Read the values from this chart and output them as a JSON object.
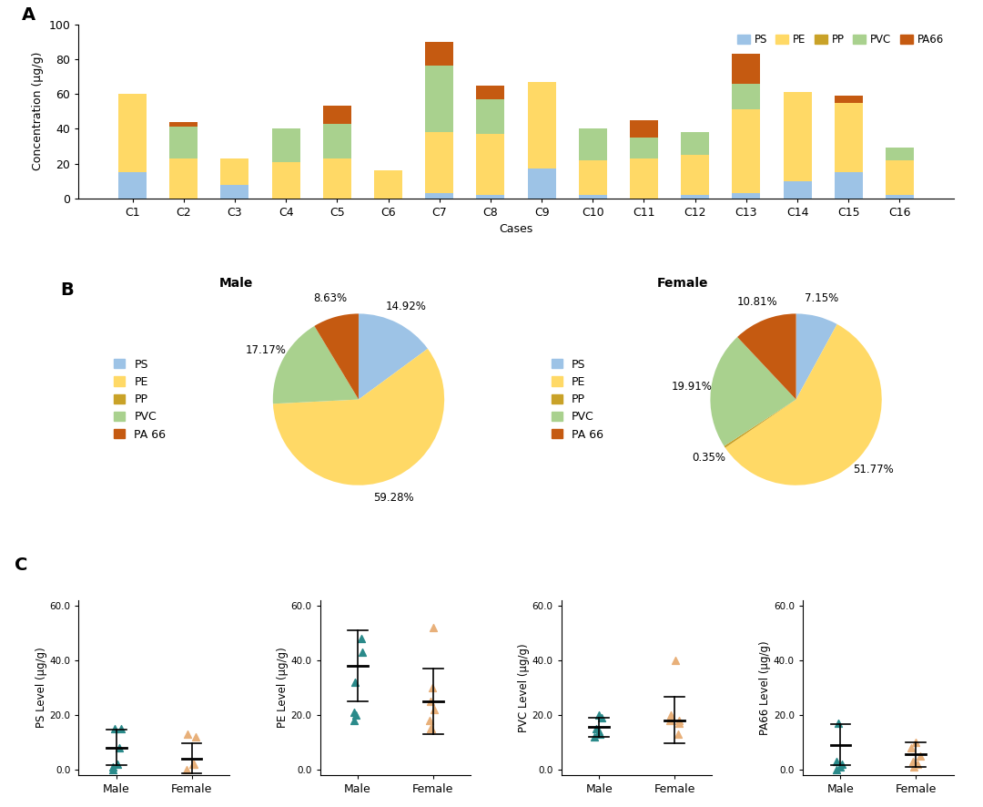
{
  "bar_cases": [
    "C1",
    "C2",
    "C3",
    "C4",
    "C5",
    "C6",
    "C7",
    "C8",
    "C9",
    "C10",
    "C11",
    "C12",
    "C13",
    "C14",
    "C15",
    "C16"
  ],
  "bar_data": {
    "PS": [
      15,
      0,
      8,
      0,
      0,
      0,
      3,
      2,
      17,
      2,
      0,
      2,
      3,
      10,
      15,
      2
    ],
    "PE": [
      45,
      23,
      15,
      21,
      23,
      16,
      35,
      35,
      50,
      20,
      23,
      23,
      48,
      51,
      40,
      20
    ],
    "PP": [
      0,
      0,
      0,
      0,
      0,
      0,
      0,
      0,
      0,
      0,
      0,
      0,
      0,
      0,
      0,
      0
    ],
    "PVC": [
      0,
      18,
      0,
      19,
      20,
      0,
      38,
      20,
      0,
      18,
      12,
      13,
      15,
      0,
      0,
      7
    ],
    "PA66": [
      0,
      3,
      0,
      0,
      10,
      0,
      14,
      8,
      0,
      0,
      10,
      0,
      17,
      0,
      4,
      0
    ]
  },
  "bar_colors": {
    "PS": "#9DC3E6",
    "PE": "#FFD966",
    "PP": "#C9A228",
    "PVC": "#A9D18E",
    "PA66": "#C55A11"
  },
  "male_pie": [
    14.92,
    59.28,
    0.001,
    17.17,
    8.63
  ],
  "female_pie": [
    7.15,
    51.77,
    0.35,
    19.91,
    10.81
  ],
  "pie_colors": [
    "#9DC3E6",
    "#FFD966",
    "#C9A228",
    "#A9D18E",
    "#C55A11"
  ],
  "pie_legend_labels": [
    "PS",
    "PE",
    "PP",
    "PVC",
    "PA 66"
  ],
  "male_pie_labels": [
    "14.92%",
    "59.28%",
    "",
    "17.17%",
    "8.63%"
  ],
  "female_pie_labels": [
    "7.15%",
    "51.77%",
    "0.35%",
    "19.91%",
    "10.81%"
  ],
  "scatter_data": {
    "PS": {
      "male": [
        15,
        15,
        8,
        2,
        1,
        0
      ],
      "female": [
        13,
        12,
        2,
        2,
        0
      ]
    },
    "PE": {
      "male": [
        43,
        48,
        32,
        21,
        18,
        20
      ],
      "female": [
        52,
        30,
        25,
        22,
        18,
        15,
        15
      ]
    },
    "PVC": {
      "male": [
        20,
        19,
        15,
        14,
        13,
        12
      ],
      "female": [
        40,
        20,
        18,
        18,
        17,
        13
      ]
    },
    "PA66": {
      "male": [
        17,
        3,
        2,
        1,
        0
      ],
      "female": [
        10,
        8,
        5,
        3,
        2,
        1
      ]
    }
  },
  "scatter_mean_sd": {
    "PS": {
      "male_mean": 8.0,
      "male_sd": 6.5,
      "female_mean": 4.0,
      "female_sd": 5.5
    },
    "PE": {
      "male_mean": 38.0,
      "male_sd": 13.0,
      "female_mean": 25.0,
      "female_sd": 12.0
    },
    "PVC": {
      "male_mean": 15.5,
      "male_sd": 3.5,
      "female_mean": 18.0,
      "female_sd": 8.5
    },
    "PA66": {
      "male_mean": 9.0,
      "male_sd": 7.5,
      "female_mean": 5.5,
      "female_sd": 4.5
    }
  },
  "scatter_ylabels": [
    "PS Level (μg/g)",
    "PE Level (μg/g)",
    "PVC Level (μg/g)",
    "PA66 Level (μg/g)"
  ],
  "male_color": "#2A8A8A",
  "female_color": "#E8B07A",
  "bg_color": "#FFFFFF"
}
